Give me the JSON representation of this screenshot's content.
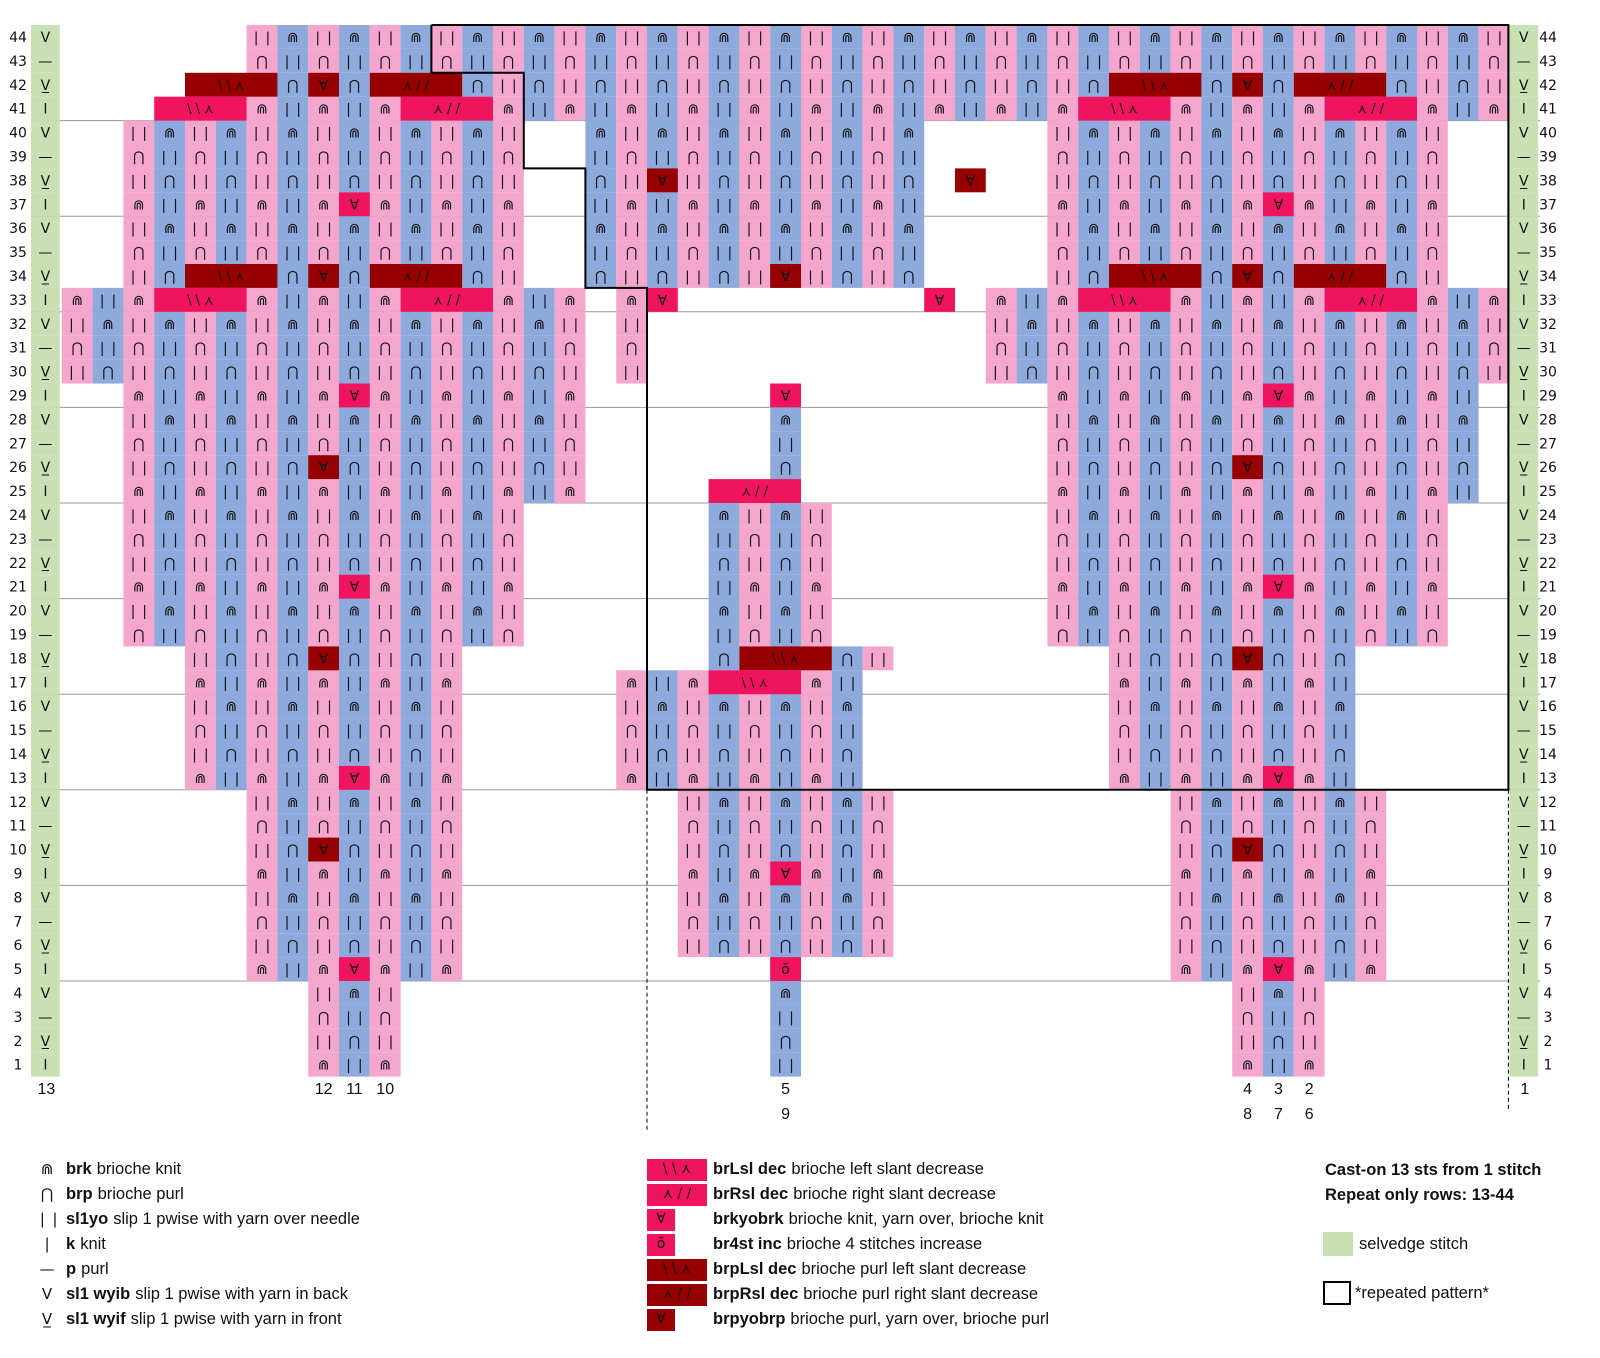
{
  "colors": {
    "blue": "#8ea9db",
    "pink": "#f4a6cd",
    "magenta": "#f0145f",
    "darkred": "#960000",
    "selvedge": "#c8e0b4"
  },
  "row_numbers": [
    44,
    43,
    42,
    41,
    40,
    39,
    38,
    37,
    36,
    35,
    34,
    33,
    32,
    31,
    30,
    29,
    28,
    27,
    26,
    25,
    24,
    23,
    22,
    21,
    20,
    19,
    18,
    17,
    16,
    15,
    14,
    13,
    12,
    11,
    10,
    9,
    8,
    7,
    6,
    5,
    4,
    3,
    2,
    1
  ],
  "selvedge_symbols": [
    "V",
    "—",
    "V̲",
    "I"
  ],
  "column_labels": [
    {
      "col": 0,
      "text": "13",
      "line": 1
    },
    {
      "col": 9,
      "text": "12",
      "line": 1
    },
    {
      "col": 10,
      "text": "11",
      "line": 1
    },
    {
      "col": 11,
      "text": "10",
      "line": 1
    },
    {
      "col": 24,
      "text": "5",
      "line": 1
    },
    {
      "col": 24,
      "text": "9",
      "line": 2
    },
    {
      "col": 39,
      "text": "4",
      "line": 1
    },
    {
      "col": 39,
      "text": "8",
      "line": 2
    },
    {
      "col": 40,
      "text": "3",
      "line": 1
    },
    {
      "col": 40,
      "text": "7",
      "line": 2
    },
    {
      "col": 41,
      "text": "2",
      "line": 1
    },
    {
      "col": 41,
      "text": "6",
      "line": 2
    },
    {
      "col": 48,
      "text": "1",
      "line": 1
    }
  ],
  "legend_left": [
    {
      "sym": "⋒",
      "abbr": "brk",
      "desc": "brioche knit"
    },
    {
      "sym": "⋂",
      "abbr": "brp",
      "desc": "brioche purl"
    },
    {
      "sym": "❘❘",
      "abbr": "sl1yo",
      "desc": "slip 1 pwise with yarn over needle"
    },
    {
      "sym": "❘",
      "abbr": "k",
      "desc": "knit"
    },
    {
      "sym": "—",
      "abbr": "p",
      "desc": "purl"
    },
    {
      "sym": "V",
      "abbr": "sl1 wyib",
      "desc": "slip 1 pwise with yarn in back"
    },
    {
      "sym": "V̲",
      "abbr": "sl1 wyif",
      "desc": "slip 1 pwise with yarn in front"
    }
  ],
  "legend_right": [
    {
      "sym": "\\ \\ ⋏",
      "color": "magenta",
      "w": 60,
      "abbr": "brLsl dec",
      "desc": "brioche left slant decrease"
    },
    {
      "sym": "⋏ / /",
      "color": "magenta",
      "w": 60,
      "abbr": "brRsl dec",
      "desc": "brioche right slant decrease"
    },
    {
      "sym": "∀",
      "color": "magenta",
      "w": 28,
      "abbr": "brkyobrk",
      "desc": "brioche knit, yarn over, brioche knit"
    },
    {
      "sym": "ŏ",
      "color": "magenta",
      "w": 28,
      "abbr": "br4st inc",
      "desc": "brioche 4 stitches increase"
    },
    {
      "sym": "\\ \\ ⋏",
      "color": "darkred",
      "w": 60,
      "abbr": "brpLsl dec",
      "desc": "brioche purl left slant decrease"
    },
    {
      "sym": "⋏ / /",
      "color": "darkred",
      "w": 60,
      "abbr": "brpRsl dec",
      "desc": "brioche purl right slant decrease"
    },
    {
      "sym": "∀",
      "color": "darkred",
      "w": 28,
      "abbr": "brpyobrp",
      "desc": "brioche purl, yarn over, brioche purl"
    }
  ],
  "notes": [
    "Cast-on 13 sts from 1 stitch",
    "Repeat only rows: 13-44"
  ],
  "selvedge_label": "selvedge stitch",
  "repeat_label": "*repeated pattern*"
}
